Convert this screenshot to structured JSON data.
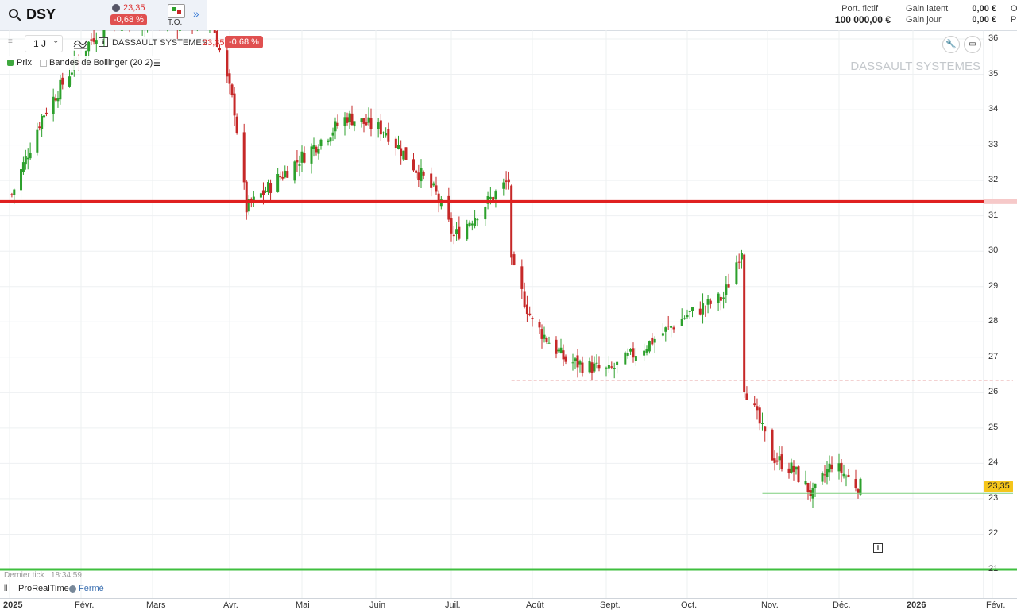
{
  "header": {
    "symbol": "DSY",
    "price": "23,35",
    "change": "-0,68 %",
    "to_label": "T.O.",
    "portfolio_label": "Port. fictif",
    "portfolio_value": "100 000,00 €",
    "gain_latent_label": "Gain latent",
    "gain_latent_value": "0,00 €",
    "gain_jour_label": "Gain jour",
    "gain_jour_value": "0,00 €",
    "col_trunc_1": "O",
    "col_trunc_2": "P"
  },
  "toolbar": {
    "period": "1 J",
    "instrument_name": "DASSAULT SYSTEMES",
    "instrument_price": "23,35",
    "instrument_change": "-0.68 %"
  },
  "legend": {
    "price_label": "Prix",
    "bollinger_label": "Bandes de Bollinger (20 2)"
  },
  "watermark": "DASSAULT SYSTEMES",
  "footer": {
    "last_tick_label": "Dernier tick",
    "last_tick_time": "18:34:59",
    "platform": "ProRealTime",
    "status": "Fermé"
  },
  "icons": {
    "search": "search-icon",
    "indicators": "indicator-icon",
    "info": "info-icon",
    "wrench": "wrench-icon",
    "window": "window-icon",
    "list": "list-icon"
  },
  "colors": {
    "up": "#2ca02c",
    "down": "#c62828",
    "resistance_line": "#e02020",
    "support_line": "#3fbf3f",
    "price_tag": "#f5c51b"
  },
  "chart_data": {
    "type": "candlestick",
    "instrument": "DASSAULT SYSTEMES",
    "interval": "1 J",
    "x_axis_labels": [
      "2025",
      "Févr.",
      "Mars",
      "Avr.",
      "Mai",
      "Juin",
      "Juil.",
      "Août",
      "Sept.",
      "Oct.",
      "Nov.",
      "Déc.",
      "2026",
      "Févr."
    ],
    "y_axis_labels": [
      "36",
      "35",
      "34",
      "33",
      "32",
      "31",
      "30",
      "29",
      "28",
      "27",
      "26",
      "25",
      "24",
      "23",
      "22",
      "21"
    ],
    "ylim": [
      20.85,
      36.2
    ],
    "last_price": "23,35",
    "levels": [
      {
        "value": 31.4,
        "style": "solid"
      },
      {
        "value": 26.35,
        "style": "dashed"
      },
      {
        "value": 23.15,
        "style": "solid"
      },
      {
        "value": 21.0,
        "style": "solid"
      }
    ],
    "key_closes": [
      {
        "x": "2025-01-02",
        "y": 31.6
      },
      {
        "x": "2025-01-15",
        "y": 33.8
      },
      {
        "x": "2025-02-10",
        "y": 36.5
      },
      {
        "x": "2025-03-25",
        "y": 36.5
      },
      {
        "x": "2025-04-03",
        "y": 34.0
      },
      {
        "x": "2025-04-08",
        "y": 31.2
      },
      {
        "x": "2025-04-25",
        "y": 32.3
      },
      {
        "x": "2025-05-20",
        "y": 33.8
      },
      {
        "x": "2025-06-05",
        "y": 33.4
      },
      {
        "x": "2025-06-25",
        "y": 31.6
      },
      {
        "x": "2025-07-02",
        "y": 30.4
      },
      {
        "x": "2025-07-15",
        "y": 31.4
      },
      {
        "x": "2025-07-23",
        "y": 32.0
      },
      {
        "x": "2025-07-24",
        "y": 29.6
      },
      {
        "x": "2025-08-01",
        "y": 28.0
      },
      {
        "x": "2025-08-15",
        "y": 26.9
      },
      {
        "x": "2025-09-02",
        "y": 26.6
      },
      {
        "x": "2025-09-15",
        "y": 27.3
      },
      {
        "x": "2025-10-01",
        "y": 28.2
      },
      {
        "x": "2025-10-15",
        "y": 28.7
      },
      {
        "x": "2025-10-22",
        "y": 30.1
      },
      {
        "x": "2025-10-23",
        "y": 26.2
      },
      {
        "x": "2025-11-03",
        "y": 24.2
      },
      {
        "x": "2025-11-12",
        "y": 23.8
      },
      {
        "x": "2025-11-20",
        "y": 23.1
      },
      {
        "x": "2025-11-28",
        "y": 24.0
      },
      {
        "x": "2025-12-08",
        "y": 23.4
      },
      {
        "x": "2025-12-10",
        "y": 23.35
      }
    ]
  }
}
